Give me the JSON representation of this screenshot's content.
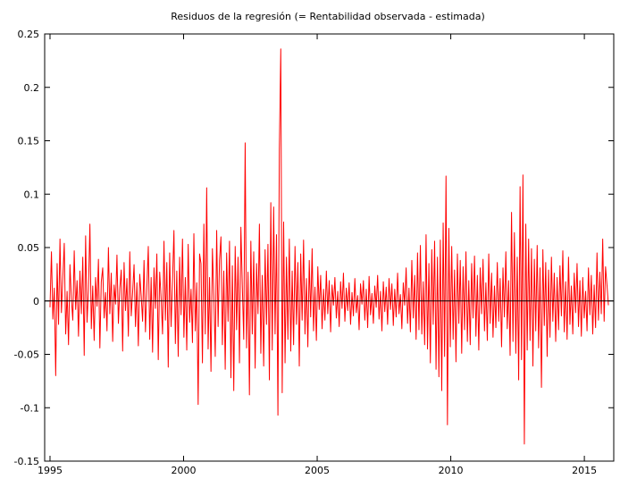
{
  "chart_data": {
    "type": "line",
    "title": "Residuos de la regresión (= Rentabilidad observada - estimada)",
    "xlabel": "",
    "ylabel": "",
    "xlim": [
      1994.8,
      2016.1
    ],
    "ylim": [
      -0.15,
      0.25
    ],
    "x_ticks": [
      1995,
      2000,
      2005,
      2010,
      2015
    ],
    "y_ticks": [
      -0.15,
      -0.1,
      -0.05,
      0,
      0.05,
      0.1,
      0.15,
      0.2,
      0.25
    ],
    "x_tick_labels": [
      "1995",
      "2000",
      "2005",
      "2010",
      "2015"
    ],
    "y_tick_labels": [
      "-0.15",
      "-0.1",
      "-0.05",
      "0",
      "0.05",
      "0.1",
      "0.15",
      "0.2",
      "0.25"
    ],
    "zero_line": true,
    "grid": false,
    "series": [
      {
        "color": "#ff0000",
        "x_start": 1995.0,
        "x_step": 0.02,
        "y_extremes": [
          {
            "x": 1995.2,
            "y": -0.07
          },
          {
            "x": 1996.0,
            "y": 0.072
          },
          {
            "x": 1998.0,
            "y": 0.066
          },
          {
            "x": 1999.0,
            "y": -0.097
          },
          {
            "x": 1999.3,
            "y": 0.106
          },
          {
            "x": 2000.0,
            "y": 0.06
          },
          {
            "x": 2000.6,
            "y": 0.148
          },
          {
            "x": 2001.0,
            "y": -0.088
          },
          {
            "x": 2001.9,
            "y": 0.092
          },
          {
            "x": 2002.1,
            "y": -0.107
          },
          {
            "x": 2002.2,
            "y": 0.236
          },
          {
            "x": 2003.0,
            "y": 0.058
          },
          {
            "x": 2009.0,
            "y": -0.084
          },
          {
            "x": 2009.3,
            "y": 0.117
          },
          {
            "x": 2009.4,
            "y": -0.116
          },
          {
            "x": 2011.8,
            "y": 0.083
          },
          {
            "x": 2012.2,
            "y": 0.118
          },
          {
            "x": 2012.25,
            "y": -0.134
          },
          {
            "x": 2013.0,
            "y": -0.081
          },
          {
            "x": 2015.8,
            "y": 0.058
          }
        ],
        "values": [
          -0.006,
          0.046,
          -0.017,
          0.012,
          -0.07,
          0.035,
          -0.022,
          0.058,
          -0.011,
          0.022,
          0.054,
          -0.031,
          0.009,
          -0.041,
          0.034,
          0.002,
          -0.018,
          0.047,
          -0.008,
          0.019,
          -0.033,
          0.028,
          -0.012,
          0.041,
          -0.051,
          0.061,
          -0.02,
          0.011,
          0.072,
          -0.026,
          0.014,
          -0.037,
          0.022,
          -0.005,
          0.039,
          -0.044,
          0.018,
          0.031,
          -0.016,
          0.008,
          -0.028,
          0.05,
          -0.012,
          0.026,
          -0.038,
          0.015,
          -0.003,
          0.043,
          -0.021,
          0.012,
          0.029,
          -0.047,
          0.036,
          -0.009,
          0.021,
          -0.033,
          0.046,
          -0.014,
          0.008,
          0.034,
          -0.024,
          0.017,
          -0.042,
          0.025,
          0.005,
          -0.019,
          0.038,
          -0.029,
          0.013,
          0.051,
          -0.036,
          0.022,
          -0.048,
          0.031,
          -0.007,
          0.044,
          -0.055,
          0.027,
          0.003,
          -0.031,
          0.056,
          -0.018,
          0.036,
          -0.062,
          0.045,
          -0.024,
          0.019,
          0.066,
          -0.04,
          0.028,
          -0.052,
          0.041,
          -0.013,
          0.058,
          -0.034,
          0.022,
          -0.046,
          0.053,
          -0.02,
          0.011,
          -0.039,
          0.063,
          -0.028,
          0.017,
          -0.097,
          0.044,
          0.035,
          -0.058,
          0.072,
          -0.031,
          0.106,
          -0.045,
          0.022,
          -0.066,
          0.049,
          0.005,
          -0.052,
          0.066,
          -0.024,
          0.038,
          0.06,
          -0.041,
          0.028,
          -0.064,
          0.045,
          -0.019,
          0.056,
          -0.072,
          0.033,
          -0.084,
          0.051,
          -0.027,
          0.041,
          -0.058,
          0.069,
          0.014,
          -0.036,
          0.148,
          -0.044,
          0.027,
          -0.088,
          0.056,
          -0.031,
          0.046,
          -0.063,
          0.035,
          -0.012,
          0.072,
          -0.049,
          0.024,
          -0.061,
          0.048,
          -0.022,
          0.053,
          -0.074,
          0.092,
          -0.046,
          0.088,
          -0.031,
          0.062,
          -0.107,
          0.142,
          0.236,
          -0.086,
          0.074,
          -0.058,
          0.041,
          -0.036,
          0.058,
          -0.047,
          0.028,
          -0.041,
          0.051,
          -0.022,
          0.036,
          -0.061,
          0.044,
          -0.018,
          0.057,
          -0.031,
          0.021,
          -0.043,
          0.038,
          -0.015,
          0.049,
          -0.028,
          0.013,
          -0.037,
          0.032,
          -0.008,
          0.024,
          -0.026,
          0.011,
          -0.018,
          0.028,
          -0.012,
          0.019,
          -0.029,
          0.015,
          -0.004,
          0.022,
          -0.016,
          0.009,
          -0.024,
          0.018,
          -0.007,
          0.026,
          -0.019,
          0.012,
          -0.009,
          0.017,
          -0.022,
          0.008,
          -0.014,
          0.021,
          -0.011,
          0.005,
          -0.027,
          0.016,
          -0.003,
          0.019,
          -0.018,
          0.011,
          -0.025,
          0.023,
          -0.013,
          0.007,
          -0.021,
          0.014,
          -0.006,
          0.024,
          -0.017,
          0.009,
          -0.028,
          0.018,
          -0.01,
          0.013,
          -0.022,
          0.021,
          -0.008,
          0.016,
          -0.023,
          0.011,
          -0.015,
          0.026,
          -0.012,
          0.006,
          -0.026,
          0.017,
          -0.004,
          0.031,
          -0.021,
          0.012,
          -0.029,
          0.038,
          -0.016,
          0.024,
          -0.036,
          0.045,
          -0.027,
          0.052,
          -0.031,
          0.018,
          -0.041,
          0.062,
          -0.045,
          0.035,
          -0.058,
          0.048,
          -0.022,
          0.056,
          -0.064,
          0.041,
          -0.071,
          0.057,
          -0.084,
          0.073,
          -0.052,
          0.117,
          -0.116,
          0.068,
          -0.043,
          0.051,
          -0.036,
          0.029,
          -0.057,
          0.044,
          -0.021,
          0.038,
          -0.049,
          0.032,
          -0.027,
          0.046,
          -0.038,
          0.019,
          -0.041,
          0.035,
          -0.016,
          0.042,
          -0.033,
          0.024,
          -0.046,
          0.031,
          -0.012,
          0.039,
          -0.028,
          0.017,
          -0.037,
          0.044,
          -0.021,
          0.026,
          -0.034,
          0.014,
          -0.025,
          0.036,
          -0.019,
          0.021,
          -0.043,
          0.031,
          -0.015,
          0.046,
          -0.026,
          0.019,
          -0.051,
          0.083,
          -0.038,
          0.064,
          -0.049,
          0.041,
          -0.074,
          0.107,
          -0.055,
          0.118,
          -0.134,
          0.072,
          -0.046,
          0.058,
          -0.037,
          0.049,
          -0.061,
          0.039,
          -0.028,
          0.052,
          -0.044,
          0.031,
          -0.081,
          0.048,
          -0.023,
          0.036,
          -0.052,
          0.029,
          -0.034,
          0.041,
          -0.019,
          0.026,
          -0.038,
          0.022,
          -0.027,
          0.033,
          -0.014,
          0.047,
          -0.029,
          0.018,
          -0.036,
          0.041,
          -0.022,
          0.014,
          -0.031,
          0.026,
          -0.011,
          0.035,
          -0.024,
          0.019,
          -0.033,
          0.022,
          -0.016,
          0.009,
          -0.028,
          0.031,
          -0.013,
          0.024,
          -0.031,
          0.015,
          -0.025,
          0.045,
          -0.018,
          0.027,
          -0.012,
          0.058,
          -0.019,
          0.032,
          0.015,
          -0.004
        ]
      }
    ]
  }
}
